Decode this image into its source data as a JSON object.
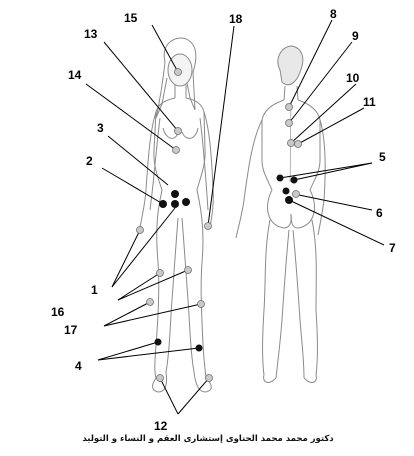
{
  "labels": {
    "l1": "1",
    "l2": "2",
    "l3": "3",
    "l4": "4",
    "l5": "5",
    "l6": "6",
    "l7": "7",
    "l8": "8",
    "l9": "9",
    "l10": "10",
    "l11": "11",
    "l12": "12",
    "l13": "13",
    "l14": "14",
    "l15": "15",
    "l16": "16",
    "l17": "17",
    "l18": "18"
  },
  "caption": "دكتور محمد محمد الحناوى إستشارى العقم و النساء و التوليد",
  "colors": {
    "ink": "#000000",
    "sketch": "#8a8a8a",
    "shade": "#c9c9c9",
    "dot": "#111111"
  }
}
